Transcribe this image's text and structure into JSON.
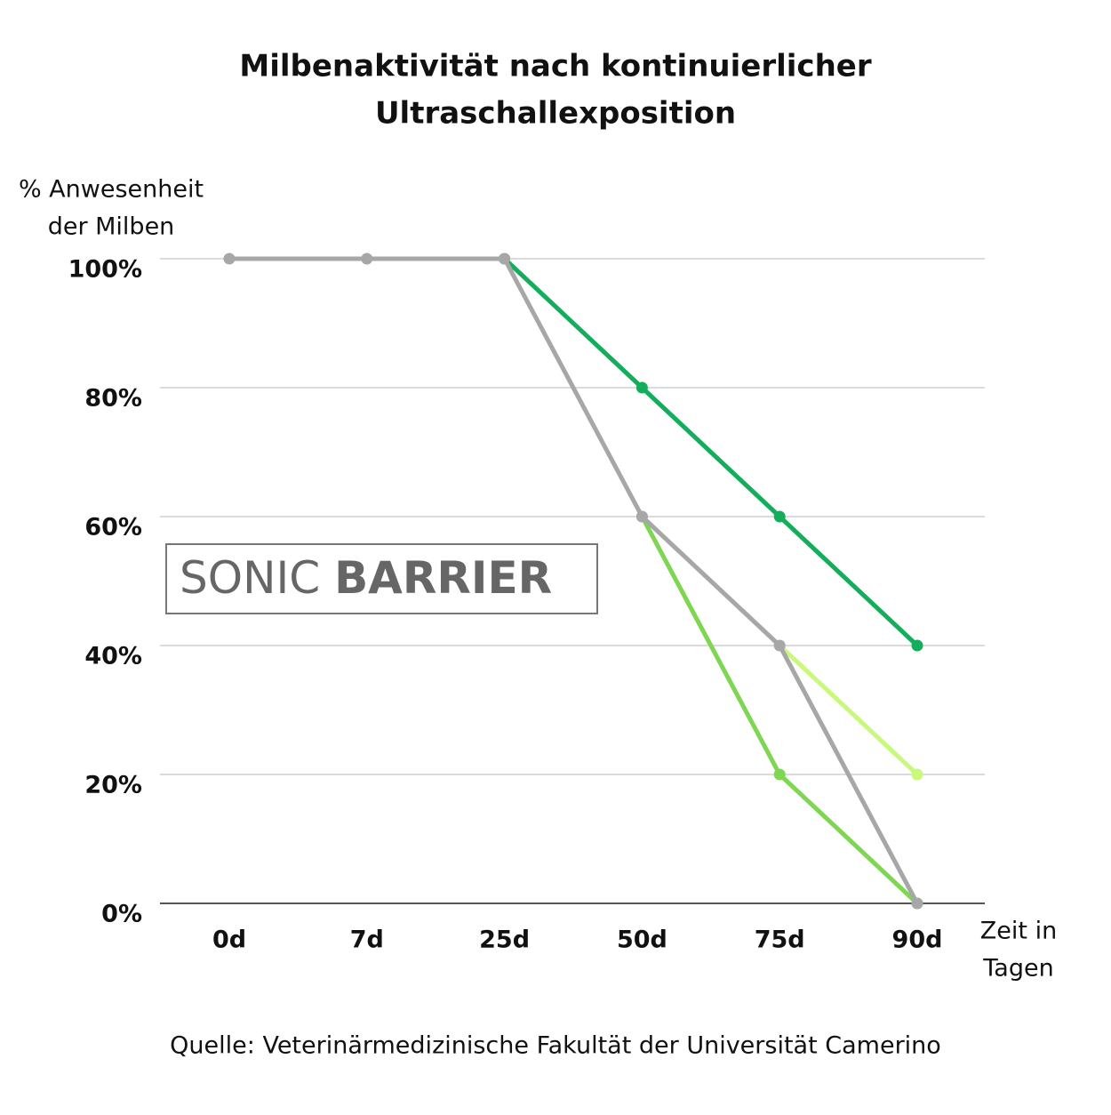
{
  "chart_data": {
    "type": "line",
    "title": [
      "Milbenaktivität nach kontinuierlicher",
      "Ultraschallexposition"
    ],
    "y_label": [
      "% Anwesenheit",
      "der Milben"
    ],
    "x_label": [
      "Zeit in",
      "Tagen"
    ],
    "source": "Quelle: Veterinärmedizinische Fakultät der Universität Camerino",
    "logo": [
      "SONIC",
      "BARRIER"
    ],
    "categories": [
      "0d",
      "7d",
      "25d",
      "50d",
      "75d",
      "90d"
    ],
    "series": [
      {
        "color": "#13ad5b",
        "values": [
          null,
          null,
          100,
          80,
          60,
          40
        ]
      },
      {
        "color": "#c8f97c",
        "values": [
          null,
          null,
          null,
          null,
          40,
          20
        ]
      },
      {
        "color": "#7fd653",
        "values": [
          null,
          null,
          null,
          60,
          20,
          0
        ]
      },
      {
        "color": "#a7a7a7",
        "values": [
          100,
          100,
          100,
          60,
          40,
          0
        ]
      }
    ],
    "ylim": [
      0,
      100
    ],
    "yticks": [
      {
        "value": 0,
        "label": "0%"
      },
      {
        "value": 20,
        "label": "20%"
      },
      {
        "value": 40,
        "label": "40%"
      },
      {
        "value": 60,
        "label": "60%"
      },
      {
        "value": 80,
        "label": "80%"
      },
      {
        "value": 100,
        "label": "100%"
      }
    ],
    "grid": true
  }
}
